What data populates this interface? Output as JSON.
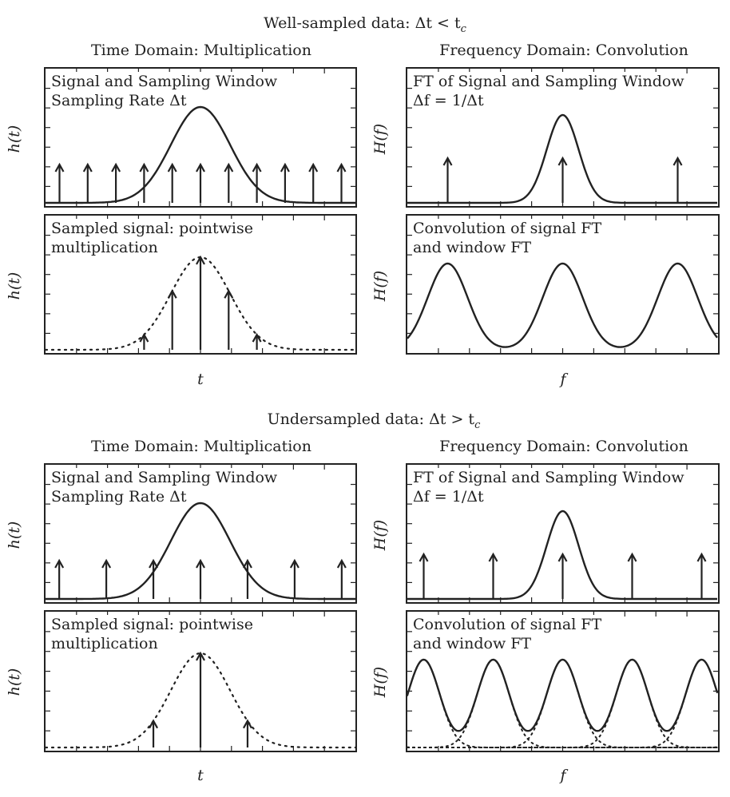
{
  "figure": {
    "sections": [
      {
        "title": "Well-sampled data: Δt < t",
        "title_sub": "c",
        "left_column_title": "Time Domain: Multiplication",
        "right_column_title": "Frequency Domain: Convolution",
        "panels": {
          "top_left": {
            "ylabel": "h(t)",
            "lines": [
              "Signal and Sampling Window",
              "Sampling Rate Δt"
            ]
          },
          "bottom_left": {
            "ylabel": "h(t)",
            "lines": [
              "Sampled signal: pointwise",
              "multiplication"
            ]
          },
          "top_right": {
            "ylabel": "H(f)",
            "lines": [
              "FT of Signal and Sampling Window",
              "Δf = 1/Δt"
            ]
          },
          "bottom_right": {
            "ylabel": "H(f)",
            "lines": [
              "Convolution of signal FT",
              "and window FT"
            ]
          }
        },
        "xlabel_left": "t",
        "xlabel_right": "f",
        "model": {
          "time_sample_spacing": 1,
          "time_samples": [
            -5,
            -4,
            -3,
            -2,
            -1,
            0,
            1,
            2,
            3,
            4,
            5
          ],
          "gaussian_width": 1.05,
          "freq_comb_positions": [
            -1,
            0,
            1
          ],
          "freq_replicas": [
            -1,
            0,
            1
          ]
        }
      },
      {
        "title": "Undersampled data: Δt > t",
        "title_sub": "c",
        "left_column_title": "Time Domain: Multiplication",
        "right_column_title": "Frequency Domain: Convolution",
        "panels": {
          "top_left": {
            "ylabel": "h(t)",
            "lines": [
              "Signal and Sampling Window",
              "Sampling Rate Δt"
            ]
          },
          "bottom_left": {
            "ylabel": "h(t)",
            "lines": [
              "Sampled signal: pointwise",
              "multiplication"
            ]
          },
          "top_right": {
            "ylabel": "H(f)",
            "lines": [
              "FT of Signal and Sampling Window",
              "Δf = 1/Δt"
            ]
          },
          "bottom_right": {
            "ylabel": "H(f)",
            "lines": [
              "Convolution of signal FT",
              "and window FT"
            ]
          }
        },
        "xlabel_left": "t",
        "xlabel_right": "f",
        "model": {
          "time_sample_spacing": 1.67,
          "time_samples": [
            -3,
            -2,
            -1,
            0,
            1,
            2,
            3
          ],
          "gaussian_width": 1.05,
          "freq_comb_positions": [
            -2,
            -1,
            0,
            1,
            2
          ],
          "freq_replicas": [
            -2,
            -1,
            0,
            1,
            2
          ]
        }
      }
    ],
    "colors": {
      "ink": "#222222",
      "background": "#ffffff"
    }
  }
}
